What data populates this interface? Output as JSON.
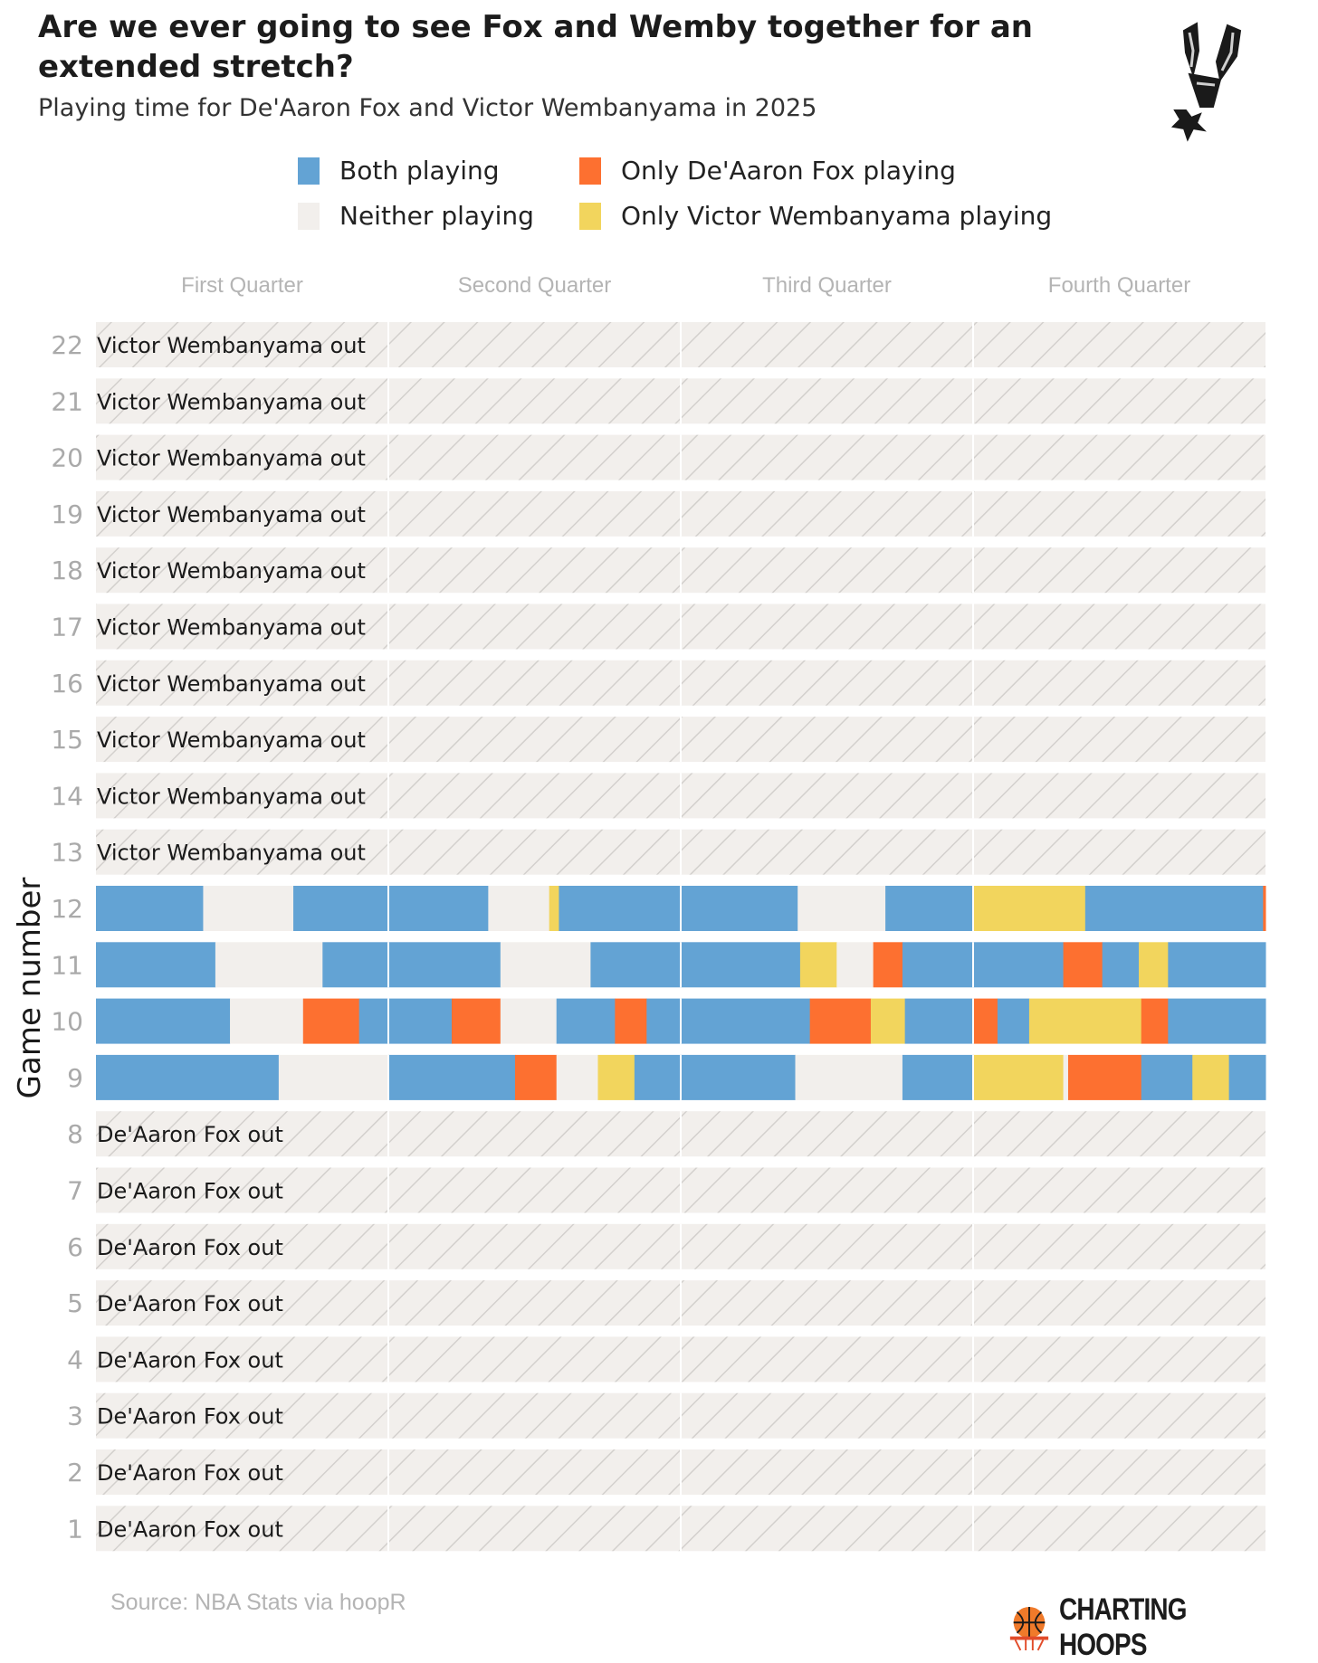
{
  "title": "Are we ever going to see Fox and Wemby together for an extended stretch?",
  "subtitle": "Playing time for De'Aaron Fox and Victor Wembanyama in 2025",
  "source": "Source: NBA Stats via hoopR",
  "brand": "CHARTING HOOPS",
  "logo_icon": "spurs-logo-icon",
  "brand_icon": "basketball-hoop-icon",
  "colors": {
    "both": "#63a3d4",
    "fox": "#fd7030",
    "wemby": "#f2d55d",
    "neither": "#f2efec",
    "hatch_bg": "#f2efec",
    "hatch_line": "#d3d0cd"
  },
  "legend": [
    {
      "key": "both",
      "label": "Both playing"
    },
    {
      "key": "fox",
      "label": "Only De'Aaron Fox playing"
    },
    {
      "key": "neither",
      "label": "Neither playing"
    },
    {
      "key": "wemby",
      "label": "Only Victor Wembanyama playing"
    }
  ],
  "chart_data": {
    "type": "timeline",
    "title": "Are we ever going to see Fox and Wemby together for an extended stretch?",
    "subtitle": "Playing time for De'Aaron Fox and Victor Wembanyama in 2025",
    "ylabel": "Game number",
    "columns": [
      "First Quarter",
      "Second Quarter",
      "Third Quarter",
      "Fourth Quarter"
    ],
    "minutes_per_quarter": 12,
    "games": [
      {
        "game": 22,
        "out": "Victor Wembanyama out"
      },
      {
        "game": 21,
        "out": "Victor Wembanyama out"
      },
      {
        "game": 20,
        "out": "Victor Wembanyama out"
      },
      {
        "game": 19,
        "out": "Victor Wembanyama out"
      },
      {
        "game": 18,
        "out": "Victor Wembanyama out"
      },
      {
        "game": 17,
        "out": "Victor Wembanyama out"
      },
      {
        "game": 16,
        "out": "Victor Wembanyama out"
      },
      {
        "game": 15,
        "out": "Victor Wembanyama out"
      },
      {
        "game": 14,
        "out": "Victor Wembanyama out"
      },
      {
        "game": 13,
        "out": "Victor Wembanyama out"
      },
      {
        "game": 12,
        "segments": [
          {
            "start": 0,
            "end": 4.4,
            "status": "both"
          },
          {
            "start": 4.4,
            "end": 8.1,
            "status": "neither"
          },
          {
            "start": 8.1,
            "end": 12,
            "status": "both"
          },
          {
            "start": 12,
            "end": 16.1,
            "status": "both"
          },
          {
            "start": 16.1,
            "end": 18.6,
            "status": "neither"
          },
          {
            "start": 18.6,
            "end": 19.0,
            "status": "wemby"
          },
          {
            "start": 19.0,
            "end": 24,
            "status": "both"
          },
          {
            "start": 24,
            "end": 28.8,
            "status": "both"
          },
          {
            "start": 28.8,
            "end": 32.4,
            "status": "neither"
          },
          {
            "start": 32.4,
            "end": 36,
            "status": "both"
          },
          {
            "start": 36,
            "end": 40.6,
            "status": "wemby"
          },
          {
            "start": 40.6,
            "end": 47.9,
            "status": "both"
          },
          {
            "start": 47.9,
            "end": 48,
            "status": "fox"
          }
        ]
      },
      {
        "game": 11,
        "segments": [
          {
            "start": 0,
            "end": 4.9,
            "status": "both"
          },
          {
            "start": 4.9,
            "end": 9.3,
            "status": "neither"
          },
          {
            "start": 9.3,
            "end": 12,
            "status": "both"
          },
          {
            "start": 12,
            "end": 16.6,
            "status": "both"
          },
          {
            "start": 16.6,
            "end": 20.3,
            "status": "neither"
          },
          {
            "start": 20.3,
            "end": 24,
            "status": "both"
          },
          {
            "start": 24,
            "end": 28.9,
            "status": "both"
          },
          {
            "start": 28.9,
            "end": 30.4,
            "status": "wemby"
          },
          {
            "start": 30.4,
            "end": 31.9,
            "status": "neither"
          },
          {
            "start": 31.9,
            "end": 33.1,
            "status": "fox"
          },
          {
            "start": 33.1,
            "end": 36,
            "status": "both"
          },
          {
            "start": 36,
            "end": 39.7,
            "status": "both"
          },
          {
            "start": 39.7,
            "end": 41.3,
            "status": "fox"
          },
          {
            "start": 41.3,
            "end": 42.8,
            "status": "both"
          },
          {
            "start": 42.8,
            "end": 44.0,
            "status": "wemby"
          },
          {
            "start": 44.0,
            "end": 48,
            "status": "both"
          }
        ]
      },
      {
        "game": 10,
        "segments": [
          {
            "start": 0,
            "end": 5.5,
            "status": "both"
          },
          {
            "start": 5.5,
            "end": 8.5,
            "status": "neither"
          },
          {
            "start": 8.5,
            "end": 10.8,
            "status": "fox"
          },
          {
            "start": 10.8,
            "end": 12,
            "status": "both"
          },
          {
            "start": 12,
            "end": 14.6,
            "status": "both"
          },
          {
            "start": 14.6,
            "end": 16.6,
            "status": "fox"
          },
          {
            "start": 16.6,
            "end": 18.9,
            "status": "neither"
          },
          {
            "start": 18.9,
            "end": 21.3,
            "status": "both"
          },
          {
            "start": 21.3,
            "end": 22.6,
            "status": "fox"
          },
          {
            "start": 22.6,
            "end": 24,
            "status": "both"
          },
          {
            "start": 24,
            "end": 29.3,
            "status": "both"
          },
          {
            "start": 29.3,
            "end": 31.8,
            "status": "fox"
          },
          {
            "start": 31.8,
            "end": 33.2,
            "status": "wemby"
          },
          {
            "start": 33.2,
            "end": 36,
            "status": "both"
          },
          {
            "start": 36,
            "end": 37.0,
            "status": "fox"
          },
          {
            "start": 37.0,
            "end": 38.3,
            "status": "both"
          },
          {
            "start": 38.3,
            "end": 42.9,
            "status": "wemby"
          },
          {
            "start": 42.9,
            "end": 44.0,
            "status": "fox"
          },
          {
            "start": 44.0,
            "end": 48,
            "status": "both"
          }
        ]
      },
      {
        "game": 9,
        "segments": [
          {
            "start": 0,
            "end": 7.5,
            "status": "both"
          },
          {
            "start": 7.5,
            "end": 12,
            "status": "neither"
          },
          {
            "start": 12,
            "end": 17.2,
            "status": "both"
          },
          {
            "start": 17.2,
            "end": 18.9,
            "status": "fox"
          },
          {
            "start": 18.9,
            "end": 20.6,
            "status": "neither"
          },
          {
            "start": 20.6,
            "end": 22.1,
            "status": "wemby"
          },
          {
            "start": 22.1,
            "end": 24,
            "status": "both"
          },
          {
            "start": 24,
            "end": 28.7,
            "status": "both"
          },
          {
            "start": 28.7,
            "end": 33.1,
            "status": "neither"
          },
          {
            "start": 33.1,
            "end": 36,
            "status": "both"
          },
          {
            "start": 36,
            "end": 39.7,
            "status": "wemby"
          },
          {
            "start": 39.7,
            "end": 39.9,
            "status": "neither"
          },
          {
            "start": 39.9,
            "end": 42.9,
            "status": "fox"
          },
          {
            "start": 42.9,
            "end": 45.0,
            "status": "both"
          },
          {
            "start": 45.0,
            "end": 46.5,
            "status": "wemby"
          },
          {
            "start": 46.5,
            "end": 48,
            "status": "both"
          }
        ]
      },
      {
        "game": 8,
        "out": "De'Aaron Fox out"
      },
      {
        "game": 7,
        "out": "De'Aaron Fox out"
      },
      {
        "game": 6,
        "out": "De'Aaron Fox out"
      },
      {
        "game": 5,
        "out": "De'Aaron Fox out"
      },
      {
        "game": 4,
        "out": "De'Aaron Fox out"
      },
      {
        "game": 3,
        "out": "De'Aaron Fox out"
      },
      {
        "game": 2,
        "out": "De'Aaron Fox out"
      },
      {
        "game": 1,
        "out": "De'Aaron Fox out"
      }
    ]
  }
}
